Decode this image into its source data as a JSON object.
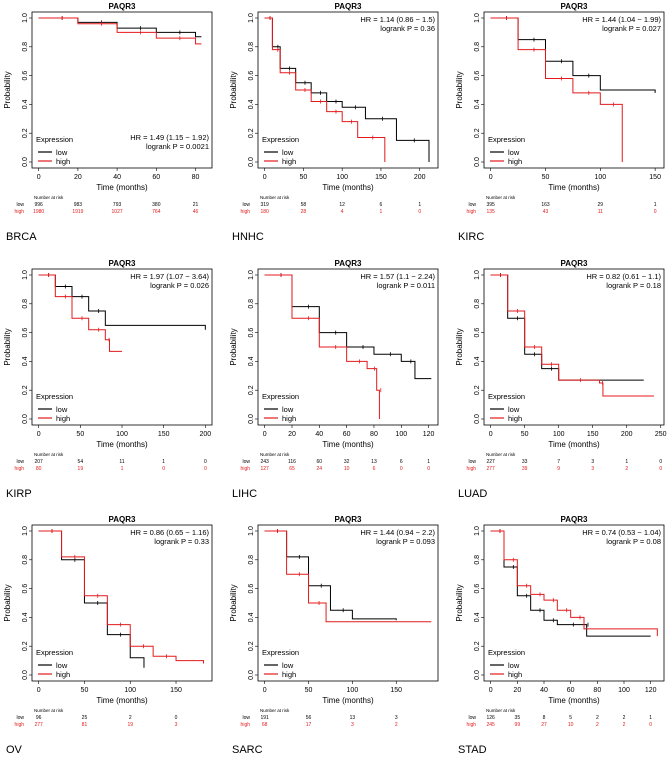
{
  "chart_data": [
    {
      "type": "line",
      "title": "PAQR3",
      "cancer": "BRCA",
      "xlabel": "Time (months)",
      "ylabel": "Probability",
      "xlim": [
        0,
        85
      ],
      "xticks": [
        0,
        20,
        40,
        60,
        80
      ],
      "ylim": [
        0,
        1
      ],
      "yticks": [
        "0.0",
        "0.2",
        "0.4",
        "0.6",
        "0.8",
        "1.0"
      ],
      "hr": "HR = 1.49 (1.15 − 1.92)",
      "logrank": "logrank P = 0.0021",
      "stats_position": "bottom-right",
      "legend_title": "Expression",
      "legend_position": "bottom-left",
      "series": [
        {
          "name": "low",
          "color": "#000000",
          "points": [
            [
              0,
              1
            ],
            [
              20,
              0.97
            ],
            [
              40,
              0.93
            ],
            [
              60,
              0.9
            ],
            [
              80,
              0.87
            ],
            [
              83,
              0.87
            ]
          ]
        },
        {
          "name": "high",
          "color": "#e41a1c",
          "points": [
            [
              0,
              1
            ],
            [
              20,
              0.96
            ],
            [
              40,
              0.9
            ],
            [
              60,
              0.86
            ],
            [
              80,
              0.82
            ],
            [
              83,
              0.82
            ]
          ]
        }
      ],
      "risk_title": "Number at risk",
      "risk": {
        "low": [
          "996",
          "983",
          "793",
          "380",
          "21"
        ],
        "high": [
          "1980",
          "1919",
          "1027",
          "764",
          "46"
        ]
      }
    },
    {
      "type": "line",
      "title": "PAQR3",
      "cancer": "HNHC",
      "xlabel": "Time (months)",
      "ylabel": "Probability",
      "xlim": [
        0,
        215
      ],
      "xticks": [
        0,
        50,
        100,
        150,
        200
      ],
      "ylim": [
        0,
        1
      ],
      "yticks": [
        "0.0",
        "0.2",
        "0.4",
        "0.6",
        "0.8",
        "1.0"
      ],
      "hr": "HR = 1.14 (0.86 − 1.5)",
      "logrank": "logrank P = 0.36",
      "stats_position": "top-right",
      "legend_title": "Expression",
      "legend_position": "bottom-left",
      "series": [
        {
          "name": "low",
          "color": "#000000",
          "points": [
            [
              0,
              1
            ],
            [
              10,
              0.8
            ],
            [
              20,
              0.65
            ],
            [
              40,
              0.55
            ],
            [
              60,
              0.48
            ],
            [
              80,
              0.42
            ],
            [
              100,
              0.38
            ],
            [
              130,
              0.3
            ],
            [
              170,
              0.15
            ],
            [
              212,
              0.15
            ],
            [
              212,
              0
            ]
          ]
        },
        {
          "name": "high",
          "color": "#e41a1c",
          "points": [
            [
              0,
              1
            ],
            [
              10,
              0.78
            ],
            [
              20,
              0.62
            ],
            [
              40,
              0.5
            ],
            [
              60,
              0.42
            ],
            [
              80,
              0.35
            ],
            [
              100,
              0.28
            ],
            [
              120,
              0.17
            ],
            [
              155,
              0.17
            ],
            [
              155,
              0
            ]
          ]
        }
      ],
      "risk_title": "Number at risk",
      "risk": {
        "low": [
          "319",
          "58",
          "12",
          "6",
          "1"
        ],
        "high": [
          "180",
          "28",
          "4",
          "1",
          "0"
        ]
      }
    },
    {
      "type": "line",
      "title": "PAQR3",
      "cancer": "KIRC",
      "xlabel": "Time (months)",
      "ylabel": "Probability",
      "xlim": [
        0,
        152
      ],
      "xticks": [
        0,
        50,
        100,
        150
      ],
      "ylim": [
        0,
        1
      ],
      "yticks": [
        "0.0",
        "0.2",
        "0.4",
        "0.6",
        "0.8",
        "1.0"
      ],
      "hr": "HR = 1.44 (1.04 − 1.99)",
      "logrank": "logrank P = 0.027",
      "stats_position": "top-right",
      "legend_title": "Expression",
      "legend_position": "bottom-left",
      "series": [
        {
          "name": "low",
          "color": "#000000",
          "points": [
            [
              0,
              1
            ],
            [
              25,
              0.85
            ],
            [
              50,
              0.7
            ],
            [
              75,
              0.6
            ],
            [
              100,
              0.5
            ],
            [
              150,
              0.48
            ]
          ]
        },
        {
          "name": "high",
          "color": "#e41a1c",
          "points": [
            [
              0,
              1
            ],
            [
              25,
              0.78
            ],
            [
              50,
              0.58
            ],
            [
              75,
              0.48
            ],
            [
              100,
              0.4
            ],
            [
              120,
              0.4
            ],
            [
              120,
              0
            ]
          ]
        }
      ],
      "risk_title": "Number at risk",
      "risk": {
        "low": [
          "395",
          "163",
          "29",
          "1"
        ],
        "high": [
          "135",
          "43",
          "11",
          "0"
        ]
      }
    },
    {
      "type": "line",
      "title": "PAQR3",
      "cancer": "KIRP",
      "xlabel": "Time (months)",
      "ylabel": "Probability",
      "xlim": [
        0,
        200
      ],
      "xticks": [
        0,
        50,
        100,
        150,
        200
      ],
      "ylim": [
        0,
        1
      ],
      "yticks": [
        "0.0",
        "0.2",
        "0.4",
        "0.6",
        "0.8",
        "1.0"
      ],
      "hr": "HR = 1.97 (1.07 − 3.64)",
      "logrank": "logrank P = 0.026",
      "stats_position": "top-right",
      "legend_title": "Expression",
      "legend_position": "bottom-left",
      "series": [
        {
          "name": "low",
          "color": "#000000",
          "points": [
            [
              0,
              1
            ],
            [
              20,
              0.92
            ],
            [
              40,
              0.85
            ],
            [
              60,
              0.75
            ],
            [
              80,
              0.65
            ],
            [
              200,
              0.62
            ]
          ]
        },
        {
          "name": "high",
          "color": "#e41a1c",
          "points": [
            [
              0,
              1
            ],
            [
              20,
              0.85
            ],
            [
              40,
              0.7
            ],
            [
              60,
              0.62
            ],
            [
              80,
              0.55
            ],
            [
              85,
              0.47
            ],
            [
              100,
              0.47
            ]
          ]
        }
      ],
      "risk_title": "Number at risk",
      "risk": {
        "low": [
          "207",
          "54",
          "11",
          "1",
          "0"
        ],
        "high": [
          "80",
          "19",
          "1",
          "0",
          "0"
        ]
      }
    },
    {
      "type": "line",
      "title": "PAQR3",
      "cancer": "LIHC",
      "xlabel": "Time (months)",
      "ylabel": "Probability",
      "xlim": [
        0,
        122
      ],
      "xticks": [
        0,
        20,
        40,
        60,
        80,
        100,
        120
      ],
      "ylim": [
        0,
        1
      ],
      "yticks": [
        "0.0",
        "0.2",
        "0.4",
        "0.6",
        "0.8",
        "1.0"
      ],
      "hr": "HR = 1.57 (1.1 − 2.24)",
      "logrank": "logrank P = 0.011",
      "stats_position": "top-right",
      "legend_title": "Expression",
      "legend_position": "bottom-left",
      "series": [
        {
          "name": "low",
          "color": "#000000",
          "points": [
            [
              0,
              1
            ],
            [
              20,
              0.78
            ],
            [
              40,
              0.6
            ],
            [
              60,
              0.5
            ],
            [
              80,
              0.45
            ],
            [
              100,
              0.4
            ],
            [
              110,
              0.28
            ],
            [
              122,
              0.28
            ]
          ]
        },
        {
          "name": "high",
          "color": "#e41a1c",
          "points": [
            [
              0,
              1
            ],
            [
              20,
              0.7
            ],
            [
              40,
              0.5
            ],
            [
              60,
              0.4
            ],
            [
              75,
              0.35
            ],
            [
              82,
              0.2
            ],
            [
              84,
              0.2
            ],
            [
              84,
              0
            ]
          ]
        }
      ],
      "risk_title": "Number at risk",
      "risk": {
        "low": [
          "243",
          "116",
          "60",
          "32",
          "13",
          "6",
          "1"
        ],
        "high": [
          "127",
          "65",
          "24",
          "10",
          "6",
          "0",
          "0"
        ]
      }
    },
    {
      "type": "line",
      "title": "PAQR3",
      "cancer": "LUAD",
      "xlabel": "Time (months)",
      "ylabel": "Probability",
      "xlim": [
        0,
        245
      ],
      "xticks": [
        0,
        50,
        100,
        150,
        200,
        250
      ],
      "ylim": [
        0,
        1
      ],
      "yticks": [
        "0.0",
        "0.2",
        "0.4",
        "0.6",
        "0.8",
        "1.0"
      ],
      "hr": "HR = 0.82 (0.61 − 1.1)",
      "logrank": "logrank P = 0.18",
      "stats_position": "top-right",
      "legend_title": "Expression",
      "legend_position": "bottom-left",
      "series": [
        {
          "name": "low",
          "color": "#000000",
          "points": [
            [
              0,
              1
            ],
            [
              25,
              0.7
            ],
            [
              50,
              0.45
            ],
            [
              75,
              0.35
            ],
            [
              100,
              0.27
            ],
            [
              225,
              0.27
            ]
          ]
        },
        {
          "name": "high",
          "color": "#e41a1c",
          "points": [
            [
              0,
              1
            ],
            [
              25,
              0.75
            ],
            [
              50,
              0.5
            ],
            [
              75,
              0.38
            ],
            [
              100,
              0.27
            ],
            [
              160,
              0.25
            ],
            [
              165,
              0.16
            ],
            [
              240,
              0.16
            ]
          ]
        }
      ],
      "risk_title": "Number at risk",
      "risk": {
        "low": [
          "227",
          "33",
          "7",
          "3",
          "1",
          "0"
        ],
        "high": [
          "277",
          "39",
          "9",
          "3",
          "2",
          "0"
        ]
      }
    },
    {
      "type": "line",
      "title": "PAQR3",
      "cancer": "OV",
      "xlabel": "Time (months)",
      "ylabel": "Probability",
      "xlim": [
        0,
        182
      ],
      "xticks": [
        0,
        50,
        100,
        150
      ],
      "ylim": [
        0,
        1
      ],
      "yticks": [
        "0.0",
        "0.2",
        "0.4",
        "0.6",
        "0.8",
        "1.0"
      ],
      "hr": "HR = 0.86 (0.65 − 1.16)",
      "logrank": "logrank P = 0.33",
      "stats_position": "top-right",
      "legend_title": "Expression",
      "legend_position": "bottom-left",
      "series": [
        {
          "name": "low",
          "color": "#000000",
          "points": [
            [
              0,
              1
            ],
            [
              25,
              0.8
            ],
            [
              50,
              0.5
            ],
            [
              75,
              0.28
            ],
            [
              100,
              0.12
            ],
            [
              115,
              0.05
            ]
          ]
        },
        {
          "name": "high",
          "color": "#e41a1c",
          "points": [
            [
              0,
              1
            ],
            [
              25,
              0.82
            ],
            [
              50,
              0.55
            ],
            [
              75,
              0.35
            ],
            [
              100,
              0.2
            ],
            [
              125,
              0.13
            ],
            [
              150,
              0.1
            ],
            [
              180,
              0.08
            ]
          ]
        }
      ],
      "risk_title": "Number at risk",
      "risk": {
        "low": [
          "96",
          "25",
          "2",
          "0"
        ],
        "high": [
          "277",
          "81",
          "19",
          "3"
        ]
      }
    },
    {
      "type": "line",
      "title": "PAQR3",
      "cancer": "SARC",
      "xlabel": "Time (months)",
      "ylabel": "Probability",
      "xlim": [
        0,
        190
      ],
      "xticks": [
        0,
        50,
        100,
        150
      ],
      "ylim": [
        0,
        1
      ],
      "yticks": [
        "0.0",
        "0.2",
        "0.4",
        "0.6",
        "0.8",
        "1.0"
      ],
      "hr": "HR = 1.44 (0.94 − 2.2)",
      "logrank": "logrank P = 0.093",
      "stats_position": "top-right",
      "legend_title": "Expression",
      "legend_position": "bottom-left",
      "series": [
        {
          "name": "low",
          "color": "#000000",
          "points": [
            [
              0,
              1
            ],
            [
              25,
              0.82
            ],
            [
              50,
              0.62
            ],
            [
              75,
              0.45
            ],
            [
              100,
              0.39
            ],
            [
              150,
              0.38
            ]
          ]
        },
        {
          "name": "high",
          "color": "#e41a1c",
          "points": [
            [
              0,
              1
            ],
            [
              25,
              0.7
            ],
            [
              50,
              0.5
            ],
            [
              70,
              0.37
            ],
            [
              190,
              0.37
            ]
          ]
        }
      ],
      "risk_title": "Number at risk",
      "risk": {
        "low": [
          "191",
          "56",
          "13",
          "3"
        ],
        "high": [
          "68",
          "17",
          "3",
          "2"
        ]
      }
    },
    {
      "type": "line",
      "title": "PAQR3",
      "cancer": "STAD",
      "xlabel": "Time (months)",
      "ylabel": "Probability",
      "xlim": [
        0,
        125
      ],
      "xticks": [
        0,
        20,
        40,
        60,
        80,
        100,
        120
      ],
      "ylim": [
        0,
        1
      ],
      "yticks": [
        "0.0",
        "0.2",
        "0.4",
        "0.6",
        "0.8",
        "1.0"
      ],
      "hr": "HR = 0.74 (0.53 − 1.04)",
      "logrank": "logrank P = 0.08",
      "stats_position": "top-right",
      "legend_title": "Expression",
      "legend_position": "bottom-left",
      "series": [
        {
          "name": "low",
          "color": "#000000",
          "points": [
            [
              0,
              1
            ],
            [
              10,
              0.75
            ],
            [
              20,
              0.55
            ],
            [
              30,
              0.45
            ],
            [
              40,
              0.38
            ],
            [
              50,
              0.35
            ],
            [
              70,
              0.35
            ],
            [
              72,
              0.27
            ],
            [
              120,
              0.27
            ]
          ]
        },
        {
          "name": "high",
          "color": "#e41a1c",
          "points": [
            [
              0,
              1
            ],
            [
              10,
              0.8
            ],
            [
              20,
              0.62
            ],
            [
              30,
              0.56
            ],
            [
              40,
              0.52
            ],
            [
              50,
              0.45
            ],
            [
              60,
              0.4
            ],
            [
              70,
              0.32
            ],
            [
              125,
              0.27
            ]
          ]
        }
      ],
      "risk_title": "Number at risk",
      "risk": {
        "low": [
          "126",
          "35",
          "8",
          "5",
          "2",
          "2",
          "1"
        ],
        "high": [
          "245",
          "99",
          "27",
          "10",
          "2",
          "2",
          "0"
        ]
      }
    }
  ]
}
